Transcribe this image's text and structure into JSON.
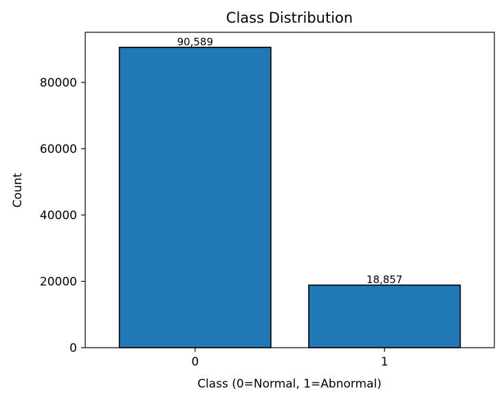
{
  "chart_data": {
    "type": "bar",
    "title": "Class Distribution",
    "xlabel": "Class (0=Normal, 1=Abnormal)",
    "ylabel": "Count",
    "categories": [
      "0",
      "1"
    ],
    "values": [
      90589,
      18857
    ],
    "value_labels": [
      "90,589",
      "18,857"
    ],
    "ylim": [
      0,
      95118
    ],
    "yticks": [
      0,
      20000,
      40000,
      60000,
      80000
    ],
    "ytick_labels": [
      "0",
      "20000",
      "40000",
      "60000",
      "80000"
    ],
    "grid": false,
    "legend": "none",
    "bar_color": "#1f77b4",
    "bar_edge_color": "#000000"
  }
}
